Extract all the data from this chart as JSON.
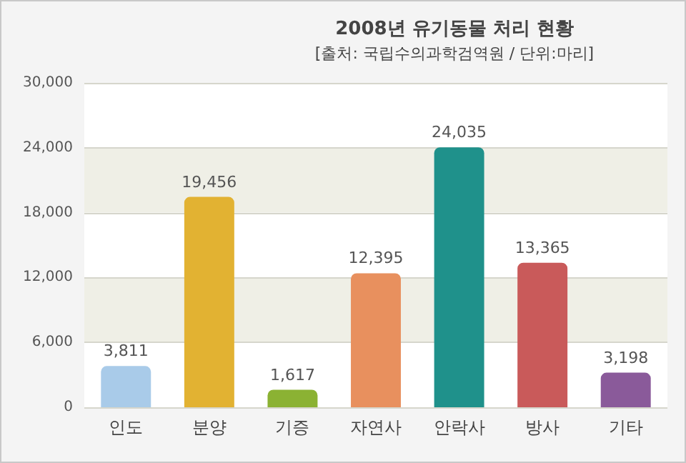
{
  "chart_data": {
    "type": "bar",
    "title": "2008년 유기동물 처리 현황",
    "subtitle": "[출처: 국립수의과학검역원 / 단위:마리]",
    "categories": [
      "인도",
      "분양",
      "기증",
      "자연사",
      "안락사",
      "방사",
      "기타"
    ],
    "values": [
      3811,
      19456,
      1617,
      12395,
      24035,
      13365,
      3198
    ],
    "colors": [
      "#a9cbe9",
      "#e2b232",
      "#8bb233",
      "#e8905e",
      "#1f918b",
      "#c95a5a",
      "#8a5a9a"
    ],
    "ylim": [
      0,
      30000
    ],
    "yticks": [
      {
        "value": 0,
        "label": "0"
      },
      {
        "value": 6000,
        "label": "6,000"
      },
      {
        "value": 12000,
        "label": "12,000"
      },
      {
        "value": 18000,
        "label": "18,000"
      },
      {
        "value": 24000,
        "label": "24,000"
      },
      {
        "value": 30000,
        "label": "30,000"
      }
    ],
    "value_labels": [
      "3,811",
      "19,456",
      "1,617",
      "12,395",
      "24,035",
      "13,365",
      "3,198"
    ],
    "grid": "y"
  }
}
